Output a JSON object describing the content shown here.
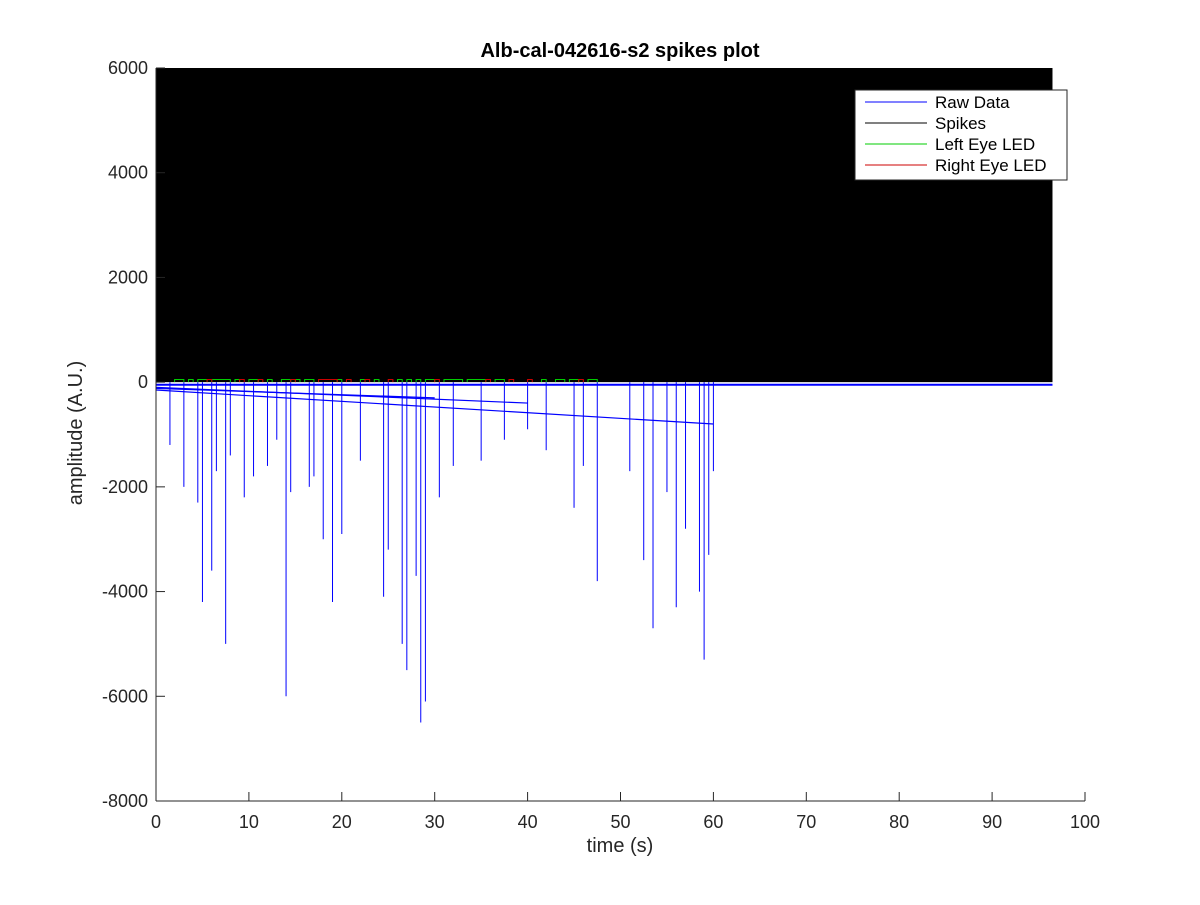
{
  "chart_data": {
    "type": "line",
    "title": "Alb-cal-042616-s2 spikes plot",
    "xlabel": "time (s)",
    "ylabel": "amplitude (A.U.)",
    "xlim": [
      0,
      100
    ],
    "ylim": [
      -8000,
      6000
    ],
    "xticks": [
      0,
      10,
      20,
      30,
      40,
      50,
      60,
      70,
      80,
      90,
      100
    ],
    "yticks": [
      6000,
      4000,
      2000,
      0,
      -2000,
      -4000,
      -6000,
      -8000
    ],
    "xtick_labels": [
      "0",
      "10",
      "20",
      "30",
      "40",
      "50",
      "60",
      "70",
      "80",
      "90",
      "100"
    ],
    "ytick_labels": [
      "6000",
      "4000",
      "2000",
      "0",
      "-2000",
      "-4000",
      "-6000",
      "-8000"
    ],
    "grid": false,
    "legend_position": "top-right",
    "series": [
      {
        "name": "Raw Data",
        "color": "#0000ff",
        "data_end_x": 96.5,
        "baseline": -50,
        "negative_spikes": [
          [
            1.5,
            -1200
          ],
          [
            3,
            -2000
          ],
          [
            4.5,
            -2300
          ],
          [
            5,
            -4200
          ],
          [
            6,
            -3600
          ],
          [
            6.5,
            -1700
          ],
          [
            7.5,
            -5000
          ],
          [
            8,
            -1400
          ],
          [
            9.5,
            -2200
          ],
          [
            10.5,
            -1800
          ],
          [
            12,
            -1600
          ],
          [
            13,
            -1100
          ],
          [
            14,
            -6000
          ],
          [
            14.5,
            -2100
          ],
          [
            16.5,
            -2000
          ],
          [
            17,
            -1800
          ],
          [
            18,
            -3000
          ],
          [
            19,
            -4200
          ],
          [
            20,
            -2900
          ],
          [
            22,
            -1500
          ],
          [
            24.5,
            -4100
          ],
          [
            25,
            -3200
          ],
          [
            26.5,
            -5000
          ],
          [
            27,
            -5500
          ],
          [
            28,
            -3700
          ],
          [
            28.5,
            -6500
          ],
          [
            29,
            -6100
          ],
          [
            30.5,
            -2200
          ],
          [
            32,
            -1600
          ],
          [
            35,
            -1500
          ],
          [
            37.5,
            -1100
          ],
          [
            40,
            -900
          ],
          [
            42,
            -1300
          ],
          [
            45,
            -2400
          ],
          [
            46,
            -1600
          ],
          [
            47.5,
            -3800
          ],
          [
            51,
            -1700
          ],
          [
            52.5,
            -3400
          ],
          [
            53.5,
            -4700
          ],
          [
            55,
            -2100
          ],
          [
            56,
            -4300
          ],
          [
            57,
            -2800
          ],
          [
            58.5,
            -4000
          ],
          [
            59,
            -5300
          ],
          [
            59.5,
            -3300
          ],
          [
            60,
            -1700
          ]
        ],
        "drift_segments": [
          [
            [
              0,
              -150
            ],
            [
              60,
              -800
            ]
          ],
          [
            [
              0,
              -100
            ],
            [
              40,
              -400
            ]
          ],
          [
            [
              0,
              -120
            ],
            [
              30,
              -300
            ]
          ]
        ]
      },
      {
        "name": "Spikes",
        "color": "#000000",
        "fill_from_x": 0,
        "fill_to_x": 96.5,
        "fill_from_y": 0,
        "fill_to_y": 6000
      },
      {
        "name": "Left Eye LED",
        "color": "#00cc00",
        "pulse_level": 50,
        "pulses": [
          [
            2,
            3
          ],
          [
            3.5,
            4
          ],
          [
            4.5,
            5.5
          ],
          [
            6,
            8
          ],
          [
            8.5,
            9
          ],
          [
            10,
            11
          ],
          [
            12,
            12.5
          ],
          [
            13.5,
            14.5
          ],
          [
            15,
            15.5
          ],
          [
            16,
            17
          ],
          [
            19.5,
            20
          ],
          [
            22,
            22.5
          ],
          [
            23.5,
            24
          ],
          [
            26,
            26.5
          ],
          [
            27,
            27.5
          ],
          [
            28,
            28.5
          ],
          [
            29,
            30
          ],
          [
            31,
            33
          ],
          [
            33.5,
            35.5
          ],
          [
            36.5,
            37.5
          ],
          [
            41.5,
            42
          ],
          [
            43,
            44
          ],
          [
            44.5,
            45.5
          ],
          [
            46.5,
            47.5
          ]
        ]
      },
      {
        "name": "Right Eye LED",
        "color": "#cc0000",
        "pulse_level": 50,
        "pulses": [
          [
            5.5,
            6
          ],
          [
            9,
            9.5
          ],
          [
            11,
            11.5
          ],
          [
            14.5,
            15
          ],
          [
            17.5,
            19.5
          ],
          [
            20.5,
            21
          ],
          [
            22.5,
            23
          ],
          [
            25,
            25.5
          ],
          [
            30,
            30.5
          ],
          [
            35.5,
            36
          ],
          [
            38,
            38.5
          ],
          [
            40,
            40.5
          ],
          [
            45.5,
            46
          ]
        ]
      }
    ]
  }
}
